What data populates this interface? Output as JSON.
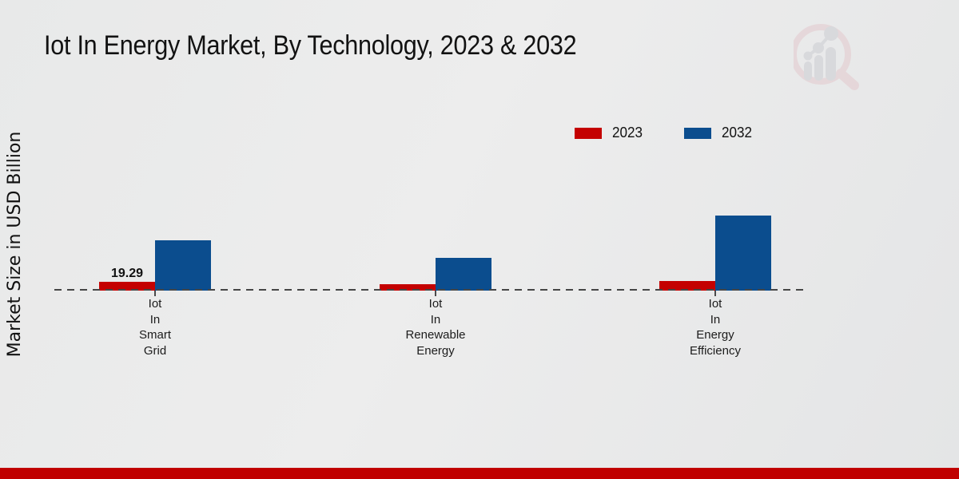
{
  "chart_data": {
    "type": "bar",
    "title": "Iot In Energy Market, By Technology, 2023 & 2032",
    "ylabel": "Market Size in USD Billion",
    "xlabel": "",
    "categories": [
      "Iot In Smart Grid",
      "Iot In Renewable Energy",
      "Iot In Energy Efficiency"
    ],
    "series": [
      {
        "name": "2023",
        "color": "#c40101",
        "values": [
          19.29,
          14.0,
          22.7
        ]
      },
      {
        "name": "2032",
        "color": "#0b4d8e",
        "values": [
          114.6,
          75.5,
          171.8
        ]
      }
    ],
    "value_labels": [
      {
        "series_index": 0,
        "category_index": 0,
        "text": "19.29"
      }
    ],
    "legend_position": "top-right",
    "grid": false,
    "axis_style": "dashed-zero-line",
    "ylim": [
      0,
      180
    ]
  },
  "legend": {
    "items": [
      {
        "label": "2023",
        "color": "#c40101"
      },
      {
        "label": "2032",
        "color": "#0b4d8e"
      }
    ]
  },
  "footer": {
    "bar_color": "#c00000"
  },
  "logo": {
    "name": "market-research-future-logo",
    "ring_color": "#e3c9cd",
    "glyph_color": "#cbccd2"
  }
}
